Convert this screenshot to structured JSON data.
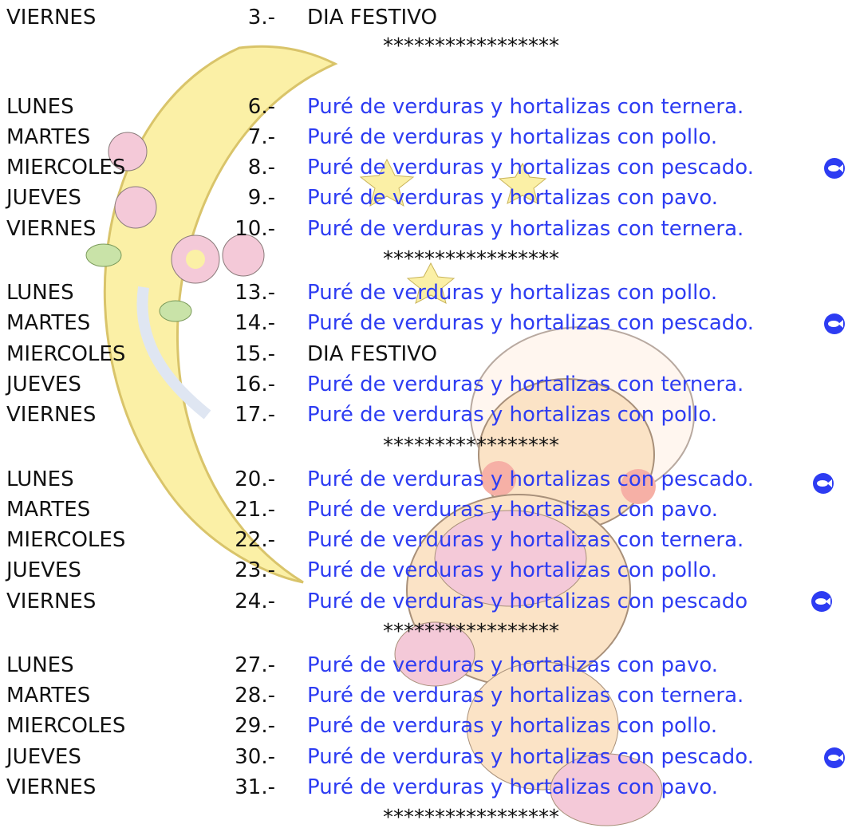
{
  "weeks": [
    {
      "rows": [
        {
          "day": "VIERNES",
          "number": "3.-",
          "dish": "DIA FESTIVO"
        }
      ],
      "separator": "*****************"
    },
    {
      "rows": [
        {
          "day": "LUNES",
          "number": "6.-",
          "dish": "Puré de verduras y hortalizas con ternera."
        },
        {
          "day": "MARTES",
          "number": "7.-",
          "dish": "Puré de verduras y hortalizas con pollo."
        },
        {
          "day": "MIERCOLES",
          "number": "8.-",
          "dish": "Puré de verduras y hortalizas con pescado."
        },
        {
          "day": "JUEVES",
          "number": "9.-",
          "dish": "Puré de verduras y hortalizas con pavo."
        },
        {
          "day": "VIERNES",
          "number": "10.-",
          "dish": "Puré de verduras y hortalizas con ternera."
        }
      ],
      "separator": "*****************"
    },
    {
      "rows": [
        {
          "day": "LUNES",
          "number": "13.-",
          "dish": "Puré de verduras y hortalizas con pollo."
        },
        {
          "day": "MARTES",
          "number": "14.-",
          "dish": "Puré de verduras y hortalizas con pescado."
        },
        {
          "day": "MIERCOLES",
          "number": "15.-",
          "dish": "DIA FESTIVO"
        },
        {
          "day": "JUEVES",
          "number": "16.-",
          "dish": "Puré de verduras y hortalizas con ternera."
        },
        {
          "day": "VIERNES",
          "number": "17.-",
          "dish": "Puré de verduras y hortalizas con pollo."
        }
      ],
      "separator": "*****************"
    },
    {
      "rows": [
        {
          "day": "LUNES",
          "number": "20.-",
          "dish": "Puré de verduras y hortalizas con pescado."
        },
        {
          "day": "MARTES",
          "number": "21.-",
          "dish": "Puré de verduras y hortalizas con pavo."
        },
        {
          "day": "MIERCOLES",
          "number": "22.-",
          "dish": "Puré de verduras y hortalizas con ternera."
        },
        {
          "day": "JUEVES",
          "number": "23.-",
          "dish": "Puré de verduras y hortalizas con pollo."
        },
        {
          "day": "VIERNES",
          "number": "24.-",
          "dish": "Puré de verduras y hortalizas con pescado"
        }
      ],
      "separator": "*****************"
    },
    {
      "rows": [
        {
          "day": "LUNES",
          "number": "27.-",
          "dish": "Puré de verduras y hortalizas con pavo."
        },
        {
          "day": "MARTES",
          "number": "28.-",
          "dish": "Puré de verduras y hortalizas con ternera."
        },
        {
          "day": "MIERCOLES",
          "number": "29.-",
          "dish": "Puré de verduras y hortalizas con pollo."
        },
        {
          "day": "JUEVES",
          "number": "30.-",
          "dish": "Puré de verduras y hortalizas con pescado."
        },
        {
          "day": "VIERNES",
          "number": "31.-",
          "dish": "Puré de verduras y hortalizas con pavo."
        }
      ],
      "separator": "*****************"
    }
  ]
}
